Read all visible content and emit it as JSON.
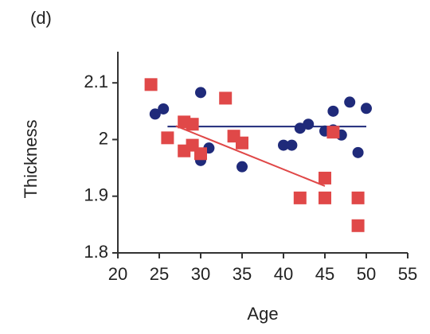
{
  "chart_data": {
    "type": "scatter",
    "panel_label": "(d)",
    "xlabel": "Age",
    "ylabel": "Thickness",
    "xlim": [
      20,
      55
    ],
    "xticks": [
      20,
      25,
      30,
      35,
      40,
      45,
      50,
      55
    ],
    "ylim": [
      1.8,
      2.155
    ],
    "yticks": [
      1.8,
      1.9,
      2,
      2.1
    ],
    "series": [
      {
        "type": "scatter",
        "marker": "circle",
        "color": "#1f2a7a",
        "x": [
          24.5,
          25.5,
          30,
          30,
          31,
          35,
          40,
          41,
          42,
          43,
          45,
          46,
          46,
          47,
          48,
          50,
          49
        ],
        "values": [
          2.045,
          2.054,
          2.083,
          1.963,
          1.985,
          1.952,
          1.99,
          1.99,
          2.02,
          2.027,
          2.015,
          2.017,
          2.05,
          2.008,
          2.066,
          2.055,
          1.977
        ]
      },
      {
        "type": "scatter",
        "marker": "square",
        "color": "#e04848",
        "x": [
          24,
          26,
          28,
          29,
          28,
          29,
          30,
          33,
          34,
          35,
          42,
          45,
          45,
          49,
          49,
          46
        ],
        "values": [
          2.097,
          2.003,
          2.031,
          2.027,
          1.98,
          1.99,
          1.975,
          2.073,
          2.006,
          1.994,
          1.897,
          1.932,
          1.897,
          1.897,
          1.848,
          2.013
        ]
      },
      {
        "type": "line",
        "color": "#1f2a7a",
        "x": [
          26,
          50
        ],
        "values": [
          2.023,
          2.023
        ]
      },
      {
        "type": "line",
        "color": "#e04848",
        "x": [
          27,
          45
        ],
        "values": [
          2.024,
          1.918
        ]
      }
    ]
  }
}
